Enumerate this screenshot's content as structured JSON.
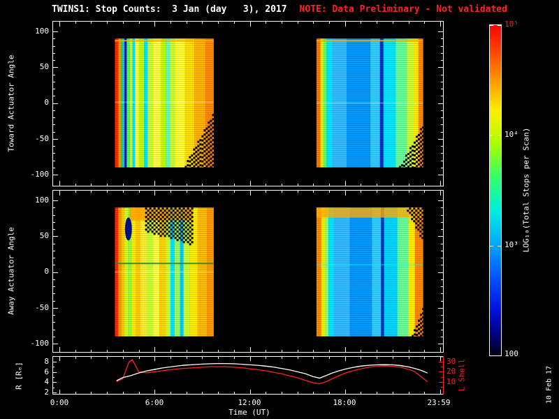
{
  "title": {
    "main": "TWINS1: Stop Counts:  3 Jan (day   3), 2017",
    "note": "NOTE: Data Preliminary - Not validated"
  },
  "axes": {
    "toward_label": "Toward Actuator Angle",
    "away_label": "Away Actuator Angle",
    "angle_ticks": [
      "100",
      "50",
      "0",
      "-50",
      "-100"
    ],
    "x_ticks": [
      "0:00",
      "6:00",
      "12:00",
      "18:00",
      "23:59"
    ],
    "x_label": "Time (UT)",
    "r_label": "R [Rₑ]",
    "r_ticks": [
      "8",
      "6",
      "4",
      "2"
    ],
    "l_label": "L Shell",
    "l_ticks": [
      "30",
      "20",
      "10"
    ]
  },
  "colorbar": {
    "label": "LOG₁₀(Total Stops per Scan)",
    "tick_labels": [
      "10⁵",
      "10⁴",
      "10³",
      "100"
    ],
    "stops": [
      [
        0,
        "#ff0000"
      ],
      [
        0.08,
        "#ff4400"
      ],
      [
        0.17,
        "#ff9900"
      ],
      [
        0.26,
        "#ffee00"
      ],
      [
        0.36,
        "#aaff00"
      ],
      [
        0.46,
        "#33ff66"
      ],
      [
        0.56,
        "#00eedd"
      ],
      [
        0.66,
        "#00aaff"
      ],
      [
        0.76,
        "#0055ff"
      ],
      [
        0.86,
        "#0011dd"
      ],
      [
        0.94,
        "#000077"
      ],
      [
        1,
        "#000011"
      ]
    ]
  },
  "date_stamp": "10 Feb 17",
  "colors": {
    "background": "#000000",
    "frame": "#ffffff",
    "note_red": "#ff2222",
    "l_shell_red": "#ff2222"
  },
  "chart_data": {
    "type": "heatmap",
    "x_range_hours": [
      0,
      24
    ],
    "angle_range": [
      -100,
      100
    ],
    "block_angle_extent": [
      -90,
      90
    ],
    "panels": [
      {
        "name": "toward",
        "blocks": [
          {
            "t0": 3.5,
            "t1": 9.7,
            "bands": [
              [
                3.5,
                3.72,
                "#ff2a00"
              ],
              [
                3.72,
                3.86,
                "#ff9900"
              ],
              [
                3.86,
                3.96,
                "#44cc44"
              ],
              [
                3.96,
                4.1,
                "#00ccff"
              ],
              [
                4.1,
                4.24,
                "#001a99"
              ],
              [
                4.24,
                4.44,
                "#44ff66"
              ],
              [
                4.44,
                4.6,
                "#ccff33"
              ],
              [
                4.6,
                4.76,
                "#00e6ff"
              ],
              [
                4.76,
                5.0,
                "#ffff44"
              ],
              [
                5.0,
                5.34,
                "#bfff00"
              ],
              [
                5.34,
                5.56,
                "#00e6ff"
              ],
              [
                5.56,
                5.9,
                "#ccff33"
              ],
              [
                5.9,
                6.4,
                "#ffff44"
              ],
              [
                6.4,
                6.7,
                "#bfff00"
              ],
              [
                6.7,
                6.96,
                "#66ffbb"
              ],
              [
                6.96,
                7.3,
                "#ccff33"
              ],
              [
                7.3,
                7.9,
                "#ffff33"
              ],
              [
                7.9,
                8.5,
                "#ffe000"
              ],
              [
                8.5,
                9.2,
                "#ffb300"
              ],
              [
                9.2,
                9.7,
                "#ff8800"
              ]
            ],
            "features": [
              {
                "type": "hline",
                "y": 87,
                "color": "#ffaa00",
                "alpha": 0.9
              },
              {
                "type": "hline",
                "y": 1,
                "color": "#ffffff",
                "alpha": 0.3
              },
              {
                "type": "checker",
                "side": "bottom",
                "t0": 7.9,
                "t1": 9.7,
                "y0": -85,
                "y1": -12
              }
            ]
          },
          {
            "t0": 16.2,
            "t1": 22.9,
            "bands": [
              [
                16.2,
                16.45,
                "#ff7700"
              ],
              [
                16.45,
                16.62,
                "#ffee00"
              ],
              [
                16.62,
                16.82,
                "#66ff66"
              ],
              [
                16.82,
                17.2,
                "#00e6ff"
              ],
              [
                17.2,
                18.1,
                "#33bbff"
              ],
              [
                18.1,
                19.6,
                "#0099ff"
              ],
              [
                19.6,
                20.2,
                "#33ccff"
              ],
              [
                20.2,
                20.42,
                "#0033cc"
              ],
              [
                20.42,
                21.2,
                "#00e6ff"
              ],
              [
                21.2,
                21.9,
                "#66ff99"
              ],
              [
                21.9,
                22.3,
                "#ccff33"
              ],
              [
                22.3,
                22.62,
                "#ffee00"
              ],
              [
                22.62,
                22.9,
                "#ff8800"
              ]
            ],
            "features": [
              {
                "type": "hline",
                "y": 87,
                "color": "#ffaa00",
                "alpha": 0.9
              },
              {
                "type": "hline",
                "y": 0,
                "color": "#bbffff",
                "alpha": 0.35
              },
              {
                "type": "checker",
                "side": "bottom",
                "t0": 21.4,
                "t1": 22.9,
                "y0": -88,
                "y1": -28
              }
            ]
          }
        ]
      },
      {
        "name": "away",
        "blocks": [
          {
            "t0": 3.5,
            "t1": 9.7,
            "bands": [
              [
                3.5,
                3.7,
                "#ff2a00"
              ],
              [
                3.7,
                3.92,
                "#ff9900"
              ],
              [
                3.92,
                4.12,
                "#ffcc00"
              ],
              [
                4.12,
                4.32,
                "#ccff33"
              ],
              [
                4.32,
                4.56,
                "#99ff33"
              ],
              [
                4.56,
                4.8,
                "#ffee00"
              ],
              [
                4.8,
                5.1,
                "#ffcc00"
              ],
              [
                5.1,
                5.5,
                "#ffee33"
              ],
              [
                5.5,
                5.9,
                "#ccff33"
              ],
              [
                5.9,
                6.3,
                "#ffff44"
              ],
              [
                6.3,
                6.7,
                "#ffd700"
              ],
              [
                6.7,
                7.0,
                "#ccff33"
              ],
              [
                7.0,
                7.26,
                "#00e6ff"
              ],
              [
                7.26,
                7.6,
                "#99ff66"
              ],
              [
                7.6,
                7.82,
                "#00ccff"
              ],
              [
                7.82,
                8.2,
                "#ccff33"
              ],
              [
                8.2,
                8.7,
                "#ffee00"
              ],
              [
                8.7,
                9.3,
                "#ffbb00"
              ],
              [
                9.3,
                9.7,
                "#ff9900"
              ]
            ],
            "features": [
              {
                "type": "hband",
                "y0": 72,
                "y1": 90,
                "t0": 4.4,
                "t1": 8.4,
                "color": "#ff9900",
                "alpha": 0.75
              },
              {
                "type": "checker",
                "side": "top",
                "t0": 5.4,
                "t1": 8.4,
                "y0": 58,
                "y1": 38
              },
              {
                "type": "ellipse",
                "t": 4.35,
                "y": 60,
                "rt": 0.22,
                "ry": 16,
                "color": "#000d80"
              },
              {
                "type": "hline",
                "y": 12,
                "color": "#2f7f2f",
                "alpha": 0.85
              },
              {
                "type": "hline",
                "y": 0,
                "color": "#ffff99",
                "alpha": 0.35
              }
            ]
          },
          {
            "t0": 16.2,
            "t1": 22.9,
            "bands": [
              [
                16.2,
                16.5,
                "#ff8800"
              ],
              [
                16.5,
                16.72,
                "#ffee00"
              ],
              [
                16.72,
                16.96,
                "#99ff66"
              ],
              [
                16.96,
                17.3,
                "#00e6ff"
              ],
              [
                17.3,
                18.3,
                "#33bbff"
              ],
              [
                18.3,
                19.7,
                "#0099ff"
              ],
              [
                19.7,
                20.26,
                "#33ccff"
              ],
              [
                20.26,
                20.46,
                "#0033cc"
              ],
              [
                20.46,
                21.3,
                "#00d5ff"
              ],
              [
                21.3,
                22.0,
                "#66ff99"
              ],
              [
                22.0,
                22.4,
                "#ffee00"
              ],
              [
                22.4,
                22.9,
                "#ff8800"
              ]
            ],
            "features": [
              {
                "type": "hband",
                "y0": 76,
                "y1": 90,
                "color": "#ffaa00",
                "alpha": 0.8
              },
              {
                "type": "hline",
                "y": 10,
                "color": "#00ffff",
                "alpha": 0.4
              },
              {
                "type": "checker",
                "side": "top",
                "t0": 21.9,
                "t1": 22.9,
                "y0": 86,
                "y1": 40
              },
              {
                "type": "checker",
                "side": "bottom",
                "t0": 22.2,
                "t1": 22.9,
                "y0": -88,
                "y1": -45
              }
            ]
          }
        ]
      }
    ],
    "line_plot": {
      "r_axis_range": [
        2,
        8
      ],
      "l_axis_ticks": [
        10,
        20,
        30
      ],
      "r_color": "#ffffff",
      "l_color": "#ff2222",
      "r_series": [
        [
          3.6,
          4.3
        ],
        [
          4.0,
          4.9
        ],
        [
          4.5,
          5.3
        ],
        [
          5.0,
          5.8
        ],
        [
          5.5,
          6.2
        ],
        [
          6.0,
          6.5
        ],
        [
          6.5,
          6.8
        ],
        [
          7.0,
          7.0
        ],
        [
          7.5,
          7.2
        ],
        [
          8.0,
          7.35
        ],
        [
          8.5,
          7.45
        ],
        [
          9.0,
          7.55
        ],
        [
          9.5,
          7.6
        ],
        [
          10.0,
          7.65
        ],
        [
          10.5,
          7.65
        ],
        [
          11.0,
          7.6
        ],
        [
          11.5,
          7.5
        ],
        [
          12.0,
          7.4
        ],
        [
          12.5,
          7.3
        ],
        [
          13.0,
          7.15
        ],
        [
          13.5,
          6.95
        ],
        [
          14.0,
          6.7
        ],
        [
          14.5,
          6.4
        ],
        [
          15.0,
          6.05
        ],
        [
          15.5,
          5.65
        ],
        [
          16.0,
          5.1
        ],
        [
          16.4,
          4.8
        ],
        [
          16.8,
          5.3
        ],
        [
          17.2,
          5.8
        ],
        [
          17.6,
          6.2
        ],
        [
          18.0,
          6.55
        ],
        [
          18.5,
          6.9
        ],
        [
          19.0,
          7.15
        ],
        [
          19.5,
          7.3
        ],
        [
          20.0,
          7.4
        ],
        [
          20.5,
          7.45
        ],
        [
          21.0,
          7.4
        ],
        [
          21.5,
          7.25
        ],
        [
          22.0,
          7.0
        ],
        [
          22.4,
          6.7
        ],
        [
          22.8,
          6.3
        ],
        [
          23.2,
          5.8
        ]
      ],
      "l_series": [
        [
          3.6,
          10
        ],
        [
          4.0,
          13
        ],
        [
          4.2,
          22
        ],
        [
          4.4,
          30
        ],
        [
          4.6,
          32
        ],
        [
          4.8,
          26
        ],
        [
          5.0,
          20
        ],
        [
          5.5,
          19
        ],
        [
          6.0,
          20
        ],
        [
          6.5,
          21
        ],
        [
          7.0,
          22
        ],
        [
          7.5,
          23
        ],
        [
          8.0,
          23.5
        ],
        [
          8.5,
          24
        ],
        [
          9.0,
          24.5
        ],
        [
          9.5,
          25
        ],
        [
          10.0,
          25
        ],
        [
          10.5,
          25
        ],
        [
          11.0,
          24.5
        ],
        [
          11.5,
          24
        ],
        [
          12.0,
          23
        ],
        [
          12.5,
          22
        ],
        [
          13.0,
          21
        ],
        [
          13.5,
          19.5
        ],
        [
          14.0,
          18
        ],
        [
          14.5,
          16
        ],
        [
          15.0,
          14
        ],
        [
          15.5,
          11.5
        ],
        [
          16.0,
          9
        ],
        [
          16.4,
          8
        ],
        [
          16.8,
          10
        ],
        [
          17.2,
          13
        ],
        [
          17.6,
          16
        ],
        [
          18.0,
          18.5
        ],
        [
          18.5,
          21
        ],
        [
          19.0,
          23
        ],
        [
          19.5,
          24.5
        ],
        [
          20.0,
          25.5
        ],
        [
          20.5,
          26
        ],
        [
          21.0,
          25.5
        ],
        [
          21.5,
          24.5
        ],
        [
          22.0,
          22.5
        ],
        [
          22.4,
          20
        ],
        [
          22.8,
          15
        ],
        [
          23.2,
          10
        ]
      ]
    }
  }
}
